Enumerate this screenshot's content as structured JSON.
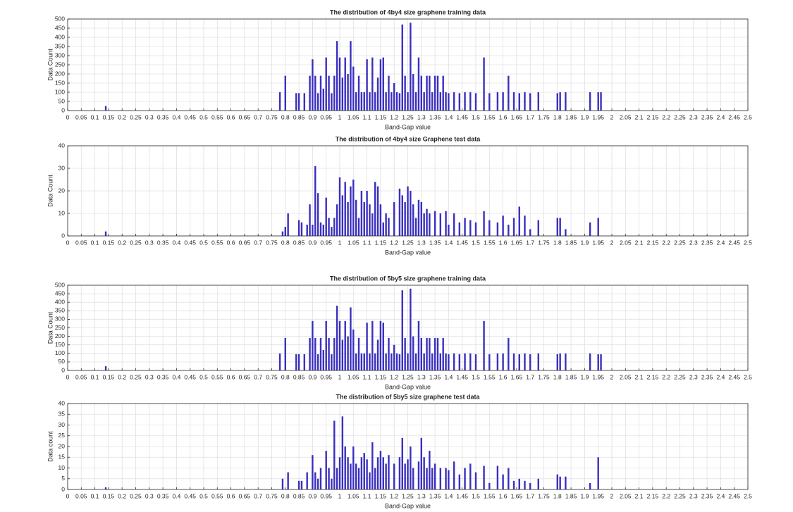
{
  "chart_data": [
    {
      "type": "bar",
      "title": "The distribution of 4by4 size graphene training data",
      "xlabel": "Band-Gap value",
      "ylabel": "Data Count",
      "color": "#3a2fbf",
      "grid": true,
      "x": [
        0.14,
        0.78,
        0.8,
        0.84,
        0.85,
        0.87,
        0.89,
        0.9,
        0.91,
        0.92,
        0.93,
        0.94,
        0.95,
        0.96,
        0.97,
        0.98,
        0.99,
        1.0,
        1.01,
        1.02,
        1.03,
        1.04,
        1.05,
        1.06,
        1.07,
        1.08,
        1.09,
        1.1,
        1.11,
        1.12,
        1.13,
        1.14,
        1.15,
        1.16,
        1.17,
        1.18,
        1.19,
        1.2,
        1.21,
        1.22,
        1.23,
        1.24,
        1.25,
        1.26,
        1.27,
        1.28,
        1.29,
        1.3,
        1.31,
        1.32,
        1.33,
        1.34,
        1.35,
        1.36,
        1.37,
        1.38,
        1.39,
        1.4,
        1.42,
        1.44,
        1.46,
        1.48,
        1.5,
        1.53,
        1.55,
        1.58,
        1.6,
        1.62,
        1.64,
        1.66,
        1.68,
        1.7,
        1.73,
        1.8,
        1.81,
        1.83,
        1.92,
        1.95,
        1.96
      ],
      "values": [
        25,
        100,
        190,
        95,
        95,
        95,
        190,
        280,
        190,
        95,
        190,
        120,
        290,
        190,
        95,
        190,
        380,
        290,
        180,
        290,
        200,
        380,
        240,
        100,
        190,
        100,
        100,
        280,
        100,
        290,
        100,
        180,
        280,
        290,
        100,
        190,
        100,
        150,
        100,
        95,
        470,
        190,
        100,
        480,
        200,
        100,
        290,
        190,
        100,
        190,
        190,
        100,
        190,
        190,
        100,
        190,
        100,
        95,
        100,
        95,
        100,
        100,
        95,
        290,
        95,
        100,
        100,
        190,
        100,
        95,
        100,
        95,
        100,
        95,
        100,
        100,
        100,
        100,
        100
      ],
      "xlim": [
        0,
        2.5
      ],
      "xticks": [
        0,
        0.05,
        0.1,
        0.15,
        0.2,
        0.25,
        0.3,
        0.35,
        0.4,
        0.45,
        0.5,
        0.55,
        0.6,
        0.65,
        0.7,
        0.75,
        0.8,
        0.85,
        0.9,
        0.95,
        1,
        1.05,
        1.1,
        1.15,
        1.2,
        1.25,
        1.3,
        1.35,
        1.4,
        1.45,
        1.5,
        1.55,
        1.6,
        1.65,
        1.7,
        1.75,
        1.8,
        1.85,
        1.9,
        1.95,
        2,
        2.05,
        2.1,
        2.15,
        2.2,
        2.25,
        2.3,
        2.35,
        2.4,
        2.45,
        2.5
      ],
      "ylim": [
        0,
        500
      ],
      "yticks": [
        0,
        50,
        100,
        150,
        200,
        250,
        300,
        350,
        400,
        450,
        500
      ]
    },
    {
      "type": "bar",
      "title": "The distribution of 4by4 size Graphene test data",
      "xlabel": "Band-Gap value",
      "ylabel": "Data Count",
      "color": "#3a2fbf",
      "grid": true,
      "x": [
        0.14,
        0.79,
        0.8,
        0.81,
        0.85,
        0.86,
        0.88,
        0.89,
        0.9,
        0.91,
        0.92,
        0.93,
        0.94,
        0.95,
        0.96,
        0.97,
        0.98,
        0.99,
        1.0,
        1.01,
        1.02,
        1.03,
        1.04,
        1.05,
        1.06,
        1.07,
        1.08,
        1.09,
        1.1,
        1.11,
        1.12,
        1.13,
        1.14,
        1.15,
        1.16,
        1.17,
        1.18,
        1.2,
        1.22,
        1.23,
        1.24,
        1.25,
        1.26,
        1.27,
        1.28,
        1.29,
        1.3,
        1.31,
        1.32,
        1.33,
        1.35,
        1.37,
        1.39,
        1.4,
        1.42,
        1.44,
        1.46,
        1.48,
        1.5,
        1.53,
        1.55,
        1.58,
        1.6,
        1.62,
        1.64,
        1.66,
        1.68,
        1.7,
        1.73,
        1.8,
        1.81,
        1.83,
        1.92,
        1.95
      ],
      "values": [
        2,
        2,
        4,
        10,
        7,
        6,
        5,
        14,
        5,
        31,
        19,
        6,
        5,
        17,
        8,
        4,
        8,
        14,
        26,
        18,
        24,
        15,
        22,
        25,
        16,
        8,
        20,
        15,
        20,
        14,
        10,
        24,
        22,
        14,
        6,
        10,
        8,
        15,
        21,
        18,
        15,
        22,
        20,
        14,
        8,
        16,
        15,
        10,
        12,
        10,
        11,
        10,
        11,
        5,
        10,
        6,
        8,
        7,
        6,
        11,
        7,
        6,
        9,
        5,
        8,
        13,
        9,
        3,
        7,
        8,
        8,
        3,
        6,
        8
      ],
      "xlim": [
        0,
        2.5
      ],
      "xticks": [
        0,
        0.05,
        0.1,
        0.15,
        0.2,
        0.25,
        0.3,
        0.35,
        0.4,
        0.45,
        0.5,
        0.55,
        0.6,
        0.65,
        0.7,
        0.75,
        0.8,
        0.85,
        0.9,
        0.95,
        1,
        1.05,
        1.1,
        1.15,
        1.2,
        1.25,
        1.3,
        1.35,
        1.4,
        1.45,
        1.5,
        1.55,
        1.6,
        1.65,
        1.7,
        1.75,
        1.8,
        1.85,
        1.9,
        1.95,
        2,
        2.05,
        2.1,
        2.15,
        2.2,
        2.25,
        2.3,
        2.35,
        2.4,
        2.45,
        2.5
      ],
      "ylim": [
        0,
        40
      ],
      "yticks": [
        0,
        10,
        20,
        30,
        40
      ]
    },
    {
      "type": "bar",
      "title": "The distribution of 5by5 size graphene training data",
      "xlabel": "Band-Gap value",
      "ylabel": "Data Count",
      "color": "#3a2fbf",
      "grid": true,
      "x": [
        0.14,
        0.78,
        0.8,
        0.84,
        0.85,
        0.87,
        0.89,
        0.9,
        0.91,
        0.92,
        0.93,
        0.94,
        0.95,
        0.96,
        0.97,
        0.98,
        0.99,
        1.0,
        1.01,
        1.02,
        1.03,
        1.04,
        1.05,
        1.06,
        1.07,
        1.08,
        1.09,
        1.1,
        1.11,
        1.12,
        1.13,
        1.14,
        1.15,
        1.16,
        1.17,
        1.18,
        1.19,
        1.2,
        1.21,
        1.22,
        1.23,
        1.24,
        1.25,
        1.26,
        1.27,
        1.28,
        1.29,
        1.3,
        1.31,
        1.32,
        1.33,
        1.34,
        1.35,
        1.36,
        1.37,
        1.38,
        1.39,
        1.4,
        1.42,
        1.44,
        1.46,
        1.48,
        1.5,
        1.53,
        1.55,
        1.58,
        1.6,
        1.62,
        1.64,
        1.66,
        1.68,
        1.7,
        1.73,
        1.8,
        1.81,
        1.83,
        1.92,
        1.95,
        1.96
      ],
      "values": [
        25,
        100,
        190,
        95,
        95,
        95,
        190,
        290,
        190,
        95,
        190,
        120,
        290,
        190,
        95,
        190,
        380,
        290,
        180,
        290,
        200,
        370,
        240,
        100,
        190,
        100,
        100,
        280,
        100,
        290,
        100,
        180,
        290,
        280,
        100,
        190,
        100,
        150,
        100,
        95,
        470,
        190,
        100,
        480,
        200,
        100,
        290,
        190,
        100,
        190,
        190,
        100,
        190,
        190,
        100,
        190,
        100,
        95,
        100,
        95,
        100,
        100,
        95,
        290,
        95,
        100,
        100,
        190,
        100,
        95,
        100,
        95,
        100,
        95,
        100,
        100,
        100,
        95,
        95
      ],
      "xlim": [
        0,
        2.5
      ],
      "xticks": [
        0,
        0.05,
        0.1,
        0.15,
        0.2,
        0.25,
        0.3,
        0.35,
        0.4,
        0.45,
        0.5,
        0.55,
        0.6,
        0.65,
        0.7,
        0.75,
        0.8,
        0.85,
        0.9,
        0.95,
        1,
        1.05,
        1.1,
        1.15,
        1.2,
        1.25,
        1.3,
        1.35,
        1.4,
        1.45,
        1.5,
        1.55,
        1.6,
        1.65,
        1.7,
        1.75,
        1.8,
        1.85,
        1.9,
        1.95,
        2,
        2.05,
        2.1,
        2.15,
        2.2,
        2.25,
        2.3,
        2.35,
        2.4,
        2.45,
        2.5
      ],
      "ylim": [
        0,
        500
      ],
      "yticks": [
        0,
        50,
        100,
        150,
        200,
        250,
        300,
        350,
        400,
        450,
        500
      ]
    },
    {
      "type": "bar",
      "title": "The distribution of 5by5 size graphene test data",
      "xlabel": "Band-Gap value",
      "ylabel": "Data count",
      "color": "#3a2fbf",
      "grid": true,
      "x": [
        0.14,
        0.79,
        0.81,
        0.85,
        0.86,
        0.88,
        0.9,
        0.91,
        0.92,
        0.93,
        0.95,
        0.96,
        0.97,
        0.98,
        0.99,
        1.0,
        1.01,
        1.02,
        1.03,
        1.04,
        1.05,
        1.06,
        1.07,
        1.08,
        1.09,
        1.1,
        1.11,
        1.12,
        1.13,
        1.14,
        1.15,
        1.16,
        1.17,
        1.18,
        1.2,
        1.22,
        1.23,
        1.24,
        1.25,
        1.26,
        1.27,
        1.29,
        1.3,
        1.31,
        1.32,
        1.33,
        1.34,
        1.35,
        1.37,
        1.39,
        1.4,
        1.42,
        1.44,
        1.46,
        1.48,
        1.5,
        1.53,
        1.55,
        1.58,
        1.6,
        1.62,
        1.64,
        1.66,
        1.68,
        1.7,
        1.73,
        1.8,
        1.81,
        1.83,
        1.92,
        1.95
      ],
      "values": [
        1,
        5,
        8,
        4,
        4,
        8,
        16,
        8,
        5,
        10,
        18,
        10,
        5,
        32,
        10,
        15,
        34,
        20,
        15,
        12,
        20,
        12,
        10,
        15,
        17,
        14,
        8,
        22,
        10,
        15,
        18,
        15,
        12,
        16,
        12,
        15,
        24,
        12,
        14,
        20,
        10,
        13,
        24,
        15,
        10,
        18,
        10,
        12,
        10,
        10,
        9,
        13,
        7,
        10,
        12,
        8,
        11,
        3,
        11,
        7,
        10,
        4,
        5,
        4,
        3,
        5,
        7,
        6,
        6,
        3,
        15
      ],
      "xlim": [
        0,
        2.5
      ],
      "xticks": [
        0,
        0.05,
        0.1,
        0.15,
        0.2,
        0.25,
        0.3,
        0.35,
        0.4,
        0.45,
        0.5,
        0.55,
        0.6,
        0.65,
        0.7,
        0.75,
        0.8,
        0.85,
        0.9,
        0.95,
        1,
        1.05,
        1.1,
        1.15,
        1.2,
        1.25,
        1.3,
        1.35,
        1.4,
        1.45,
        1.5,
        1.55,
        1.6,
        1.65,
        1.7,
        1.75,
        1.8,
        1.85,
        1.9,
        1.95,
        2,
        2.05,
        2.1,
        2.15,
        2.2,
        2.25,
        2.3,
        2.35,
        2.4,
        2.45,
        2.5
      ],
      "ylim": [
        0,
        40
      ],
      "yticks": [
        0,
        5,
        10,
        15,
        20,
        25,
        30,
        35,
        40
      ]
    }
  ]
}
